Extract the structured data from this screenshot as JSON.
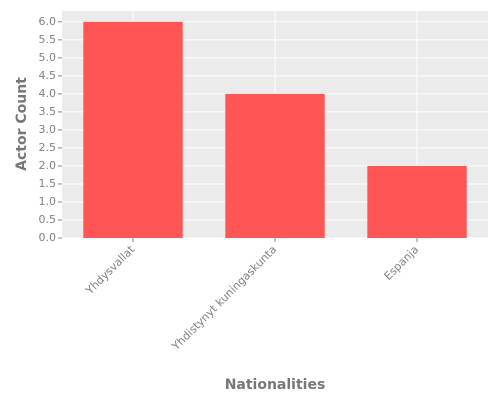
{
  "chart_data": {
    "type": "bar",
    "x_label": "Nationalities",
    "y_label": "Actor Count",
    "categories": [
      "Yhdysvallat",
      "Yhdistynyt kuningaskunta",
      "Espanja"
    ],
    "values": [
      6,
      4,
      2
    ],
    "color": "#ff5555",
    "ylim": [
      0,
      6.3
    ],
    "yticks": [
      {
        "value": 0,
        "label": "0.0"
      },
      0.5,
      {
        "value": 1,
        "label": "1.0"
      },
      1.5,
      {
        "value": 2,
        "label": "2.0"
      },
      2.5,
      {
        "value": 3,
        "label": "3.0"
      },
      3.5,
      {
        "value": 4,
        "label": "4.0"
      },
      4.5,
      {
        "value": 5,
        "label": "5.0"
      },
      5.5,
      {
        "value": 6,
        "label": "6.0"
      }
    ],
    "grid": true
  }
}
